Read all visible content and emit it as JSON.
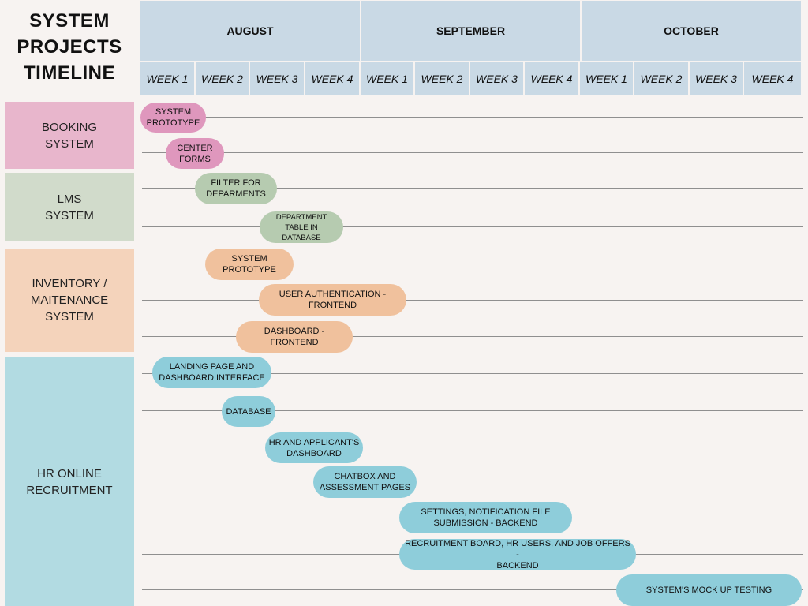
{
  "title": "SYSTEM PROJECTS TIMELINE",
  "months": [
    "AUGUST",
    "SEPTEMBER",
    "OCTOBER"
  ],
  "weeks": [
    "WEEK 1",
    "WEEK 2",
    "WEEK 3",
    "WEEK 4",
    "WEEK 1",
    "WEEK 2",
    "WEEK 3",
    "WEEK 4",
    "WEEK 1",
    "WEEK 2",
    "WEEK 3",
    "WEEK 4"
  ],
  "colors": {
    "header": "#c9d9e5",
    "booking": "#e8b6cc",
    "booking_pill": "#df97bd",
    "lms": "#d1dbcb",
    "lms_pill": "#b6cbb0",
    "inventory": "#f4d3bb",
    "inventory_pill": "#f0c19d",
    "hr": "#b2dbe2",
    "hr_pill": "#8ecdda"
  },
  "groups": [
    {
      "label": "BOOKING\nSYSTEM",
      "color_key": "booking"
    },
    {
      "label": "LMS\nSYSTEM",
      "color_key": "lms"
    },
    {
      "label": "INVENTORY /\nMAITENANCE\nSYSTEM",
      "color_key": "inventory"
    },
    {
      "label": "HR ONLINE\nRECRUITMENT",
      "color_key": "hr"
    }
  ],
  "tasks": [
    {
      "label": "SYSTEM\nPROTOTYPE",
      "group": 0
    },
    {
      "label": "CENTER\nFORMS",
      "group": 0
    },
    {
      "label": "FILTER FOR\nDEPARMENTS",
      "group": 1
    },
    {
      "label": "DEPARTMENT\nTABLE IN\nDATABASE",
      "group": 1
    },
    {
      "label": "SYSTEM\nPROTOTYPE",
      "group": 2
    },
    {
      "label": "USER AUTHENTICATION -\nFRONTEND",
      "group": 2
    },
    {
      "label": "DASHBOARD -\nFRONTEND",
      "group": 2
    },
    {
      "label": "LANDING PAGE AND\nDASHBOARD INTERFACE",
      "group": 3
    },
    {
      "label": "DATABASE",
      "group": 3
    },
    {
      "label": "HR AND APPLICANT'S\nDASHBOARD",
      "group": 3
    },
    {
      "label": "CHATBOX AND\nASSESSMENT PAGES",
      "group": 3
    },
    {
      "label": "SETTINGS, NOTIFICATION FILE\nSUBMISSION - BACKEND",
      "group": 3
    },
    {
      "label": "RECRUITMENT BOARD, HR USERS, AND JOB OFFERS -\nBACKEND",
      "group": 3
    },
    {
      "label": "SYSTEM'S MOCK UP TESTING",
      "group": 3
    }
  ]
}
